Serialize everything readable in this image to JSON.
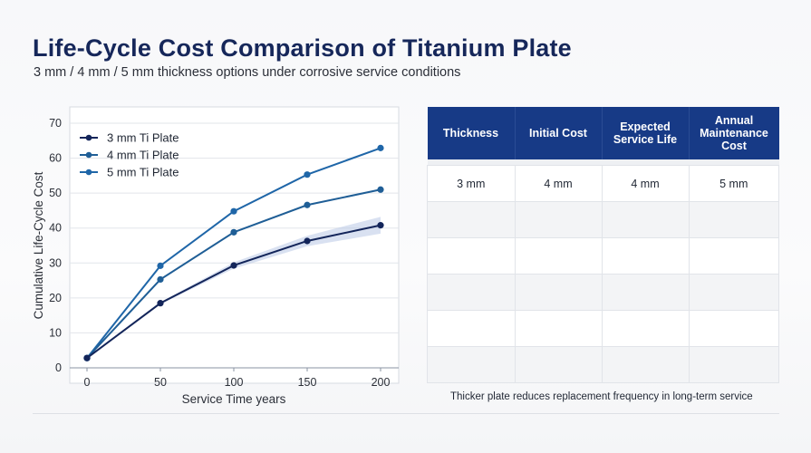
{
  "header": {
    "title": "Life-Cycle Cost Comparison of Titanium Plate",
    "subtitle": "3 mm / 4 mm / 5 mm thickness options under corrosive service conditions"
  },
  "chart_data": {
    "type": "line",
    "title": "",
    "xlabel": "Service Time years",
    "ylabel": "Cumulative Life-Cycle Cost",
    "x": [
      0,
      50,
      100,
      150,
      200
    ],
    "xlim": [
      0,
      200
    ],
    "ylim": [
      0,
      70
    ],
    "xticks": [
      "0",
      "50",
      "100",
      "150",
      "200"
    ],
    "yticks": [
      "0",
      "10",
      "20",
      "30",
      "40",
      "50",
      "60",
      "70"
    ],
    "grid": true,
    "legend_position": "top-left",
    "series": [
      {
        "name": "3 mm Ti Plate",
        "color": "#13255a",
        "values": [
          2.8,
          18.5,
          29.3,
          36.3,
          40.8
        ],
        "band": [
          0,
          0.3,
          0.9,
          1.5,
          2.4
        ]
      },
      {
        "name": "4 mm Ti Plate",
        "color": "#1f5e96",
        "values": [
          2.8,
          25.3,
          38.8,
          46.6,
          51.0
        ]
      },
      {
        "name": "5 mm Ti Plate",
        "color": "#1f66a8",
        "values": [
          2.8,
          29.2,
          44.8,
          55.3,
          62.9
        ]
      }
    ]
  },
  "table": {
    "headers": [
      "Thickness",
      "Initial Cost",
      "Expected\nService Life",
      "Annual\nMaintenance Cost"
    ],
    "rows": [
      [
        "3 mm",
        "4 mm",
        "4 mm",
        "5 mm"
      ],
      [
        "",
        "",
        "",
        ""
      ],
      [
        "",
        "",
        "",
        ""
      ],
      [
        "",
        "",
        "",
        ""
      ],
      [
        "",
        "",
        "",
        ""
      ],
      [
        "",
        "",
        "",
        ""
      ]
    ]
  },
  "footnote": "Thicker plate reduces replacement frequency in long-term service"
}
